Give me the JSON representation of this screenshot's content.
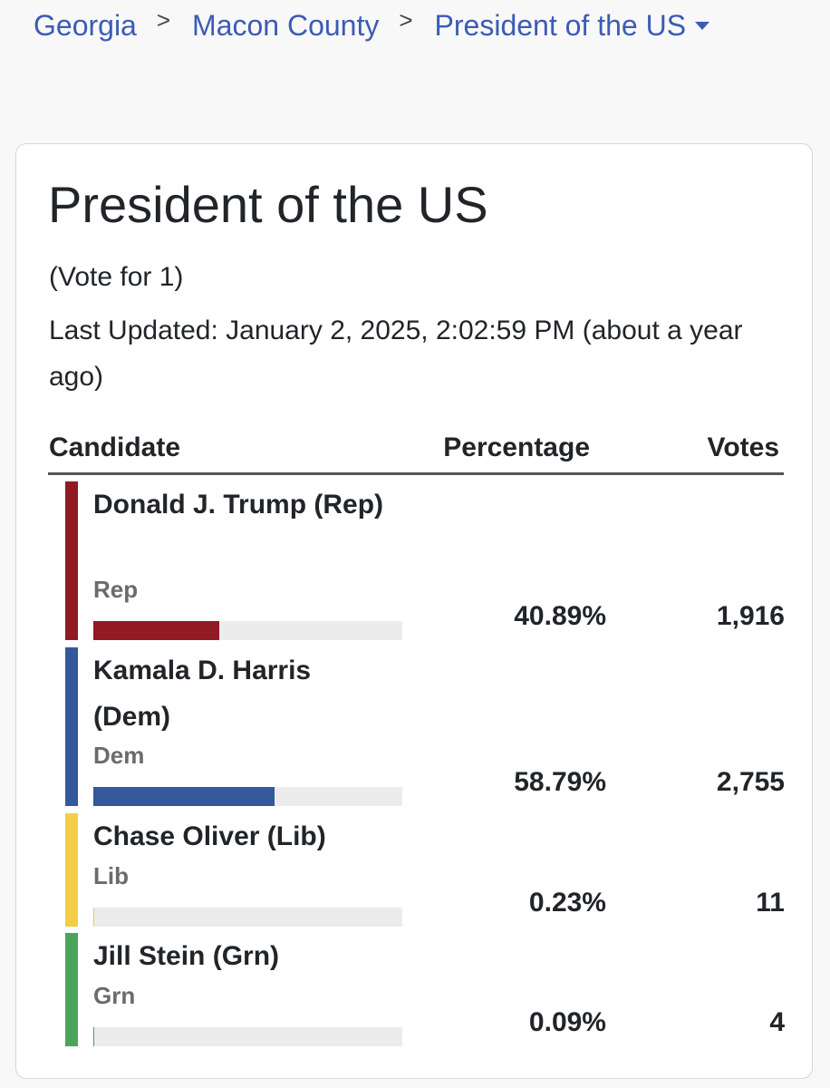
{
  "breadcrumb": {
    "items": [
      "Georgia",
      "Macon County",
      "President of the US"
    ],
    "separator": ">"
  },
  "contest": {
    "title": "President of the US",
    "vote_for": "(Vote for 1)",
    "last_updated": "Last Updated: January 2, 2025, 2:02:59 PM (about a year ago)"
  },
  "table": {
    "headers": {
      "candidate": "Candidate",
      "percentage": "Percentage",
      "votes": "Votes"
    },
    "rows": [
      {
        "name": "Donald J. Trump (Rep)",
        "party": "Rep",
        "percentage": "40.89%",
        "votes": "1,916",
        "share": 0.4089,
        "color": "#921a24"
      },
      {
        "name": "Kamala D. Harris (Dem)",
        "party": "Dem",
        "percentage": "58.79%",
        "votes": "2,755",
        "share": 0.5879,
        "color": "#33599a"
      },
      {
        "name": "Chase Oliver (Lib)",
        "party": "Lib",
        "percentage": "0.23%",
        "votes": "11",
        "share": 0.0023,
        "color": "#f3cd45"
      },
      {
        "name": "Jill Stein (Grn)",
        "party": "Grn",
        "percentage": "0.09%",
        "votes": "4",
        "share": 0.0009,
        "color": "#4aa45a"
      }
    ]
  }
}
